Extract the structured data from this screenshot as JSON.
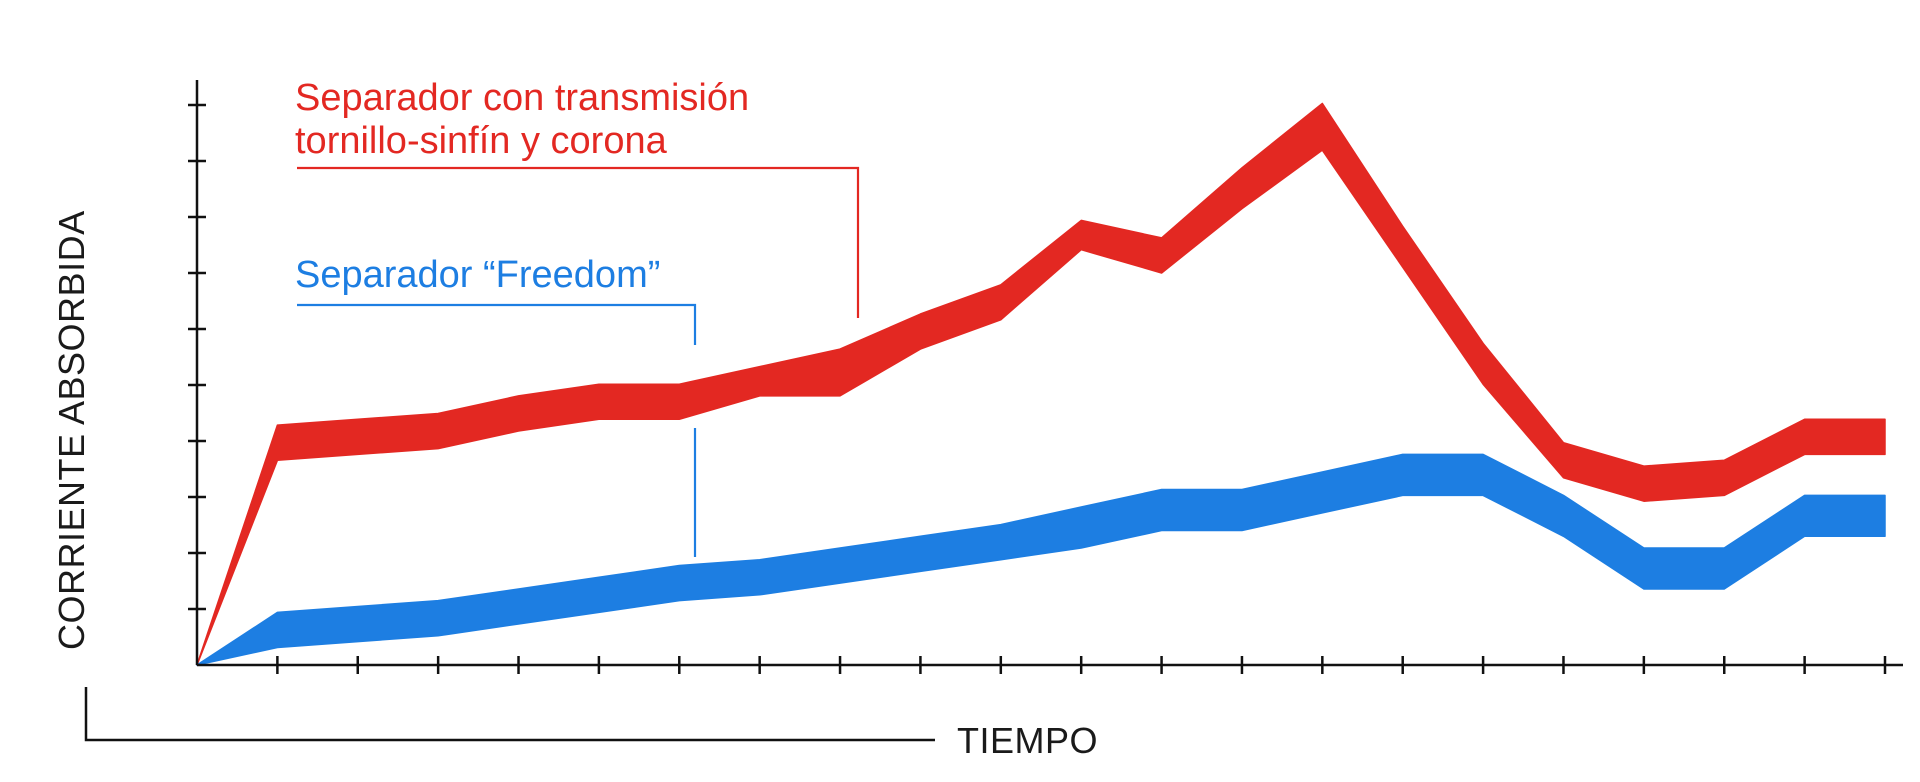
{
  "chart_data": {
    "type": "area",
    "title": "",
    "xlabel": "TIEMPO",
    "ylabel": "CORRIENTE ABSORBIDA",
    "x_tick_labels": false,
    "y_tick_labels": false,
    "x_tick_count": 21,
    "y_tick_count": 10,
    "xlim": [
      0,
      21
    ],
    "ylim": [
      0,
      10
    ],
    "legend_placement": "inline-left",
    "series": [
      {
        "name": "Separador con transmisión tornillo-sinfín y corona",
        "color": "#e32822",
        "x": [
          0,
          1,
          2,
          3,
          4,
          5,
          6,
          7,
          8,
          9,
          10,
          11,
          12,
          13,
          14,
          15,
          16,
          17,
          18,
          19,
          20,
          21
        ],
        "lower": [
          0,
          3.5,
          3.6,
          3.7,
          4.0,
          4.2,
          4.2,
          4.6,
          4.6,
          5.4,
          5.9,
          7.1,
          6.7,
          7.8,
          8.8,
          6.8,
          4.8,
          3.2,
          2.8,
          2.9,
          3.6,
          3.6
        ],
        "upper": [
          0,
          4.1,
          4.2,
          4.3,
          4.6,
          4.8,
          4.8,
          5.1,
          5.4,
          6.0,
          6.5,
          7.6,
          7.3,
          8.5,
          9.6,
          7.5,
          5.5,
          3.8,
          3.4,
          3.5,
          4.2,
          4.2
        ]
      },
      {
        "name": "Separador “Freedom”",
        "color": "#1d7ee2",
        "x": [
          0,
          1,
          2,
          3,
          4,
          5,
          6,
          7,
          8,
          9,
          10,
          11,
          12,
          13,
          14,
          15,
          16,
          17,
          18,
          19,
          20,
          21
        ],
        "lower": [
          0,
          0.3,
          0.4,
          0.5,
          0.7,
          0.9,
          1.1,
          1.2,
          1.4,
          1.6,
          1.8,
          2.0,
          2.3,
          2.3,
          2.6,
          2.9,
          2.9,
          2.2,
          1.3,
          1.3,
          2.2,
          2.2
        ],
        "upper": [
          0,
          0.9,
          1.0,
          1.1,
          1.3,
          1.5,
          1.7,
          1.8,
          2.0,
          2.2,
          2.4,
          2.7,
          3.0,
          3.0,
          3.3,
          3.6,
          3.6,
          2.9,
          2.0,
          2.0,
          2.9,
          2.9
        ]
      }
    ],
    "legend": [
      {
        "line1": "Separador con transmisión",
        "line2": "tornillo-sinfín y corona",
        "color": "#e32822"
      },
      {
        "line1": "Separador “Freedom”",
        "color": "#1d7ee2"
      }
    ]
  }
}
